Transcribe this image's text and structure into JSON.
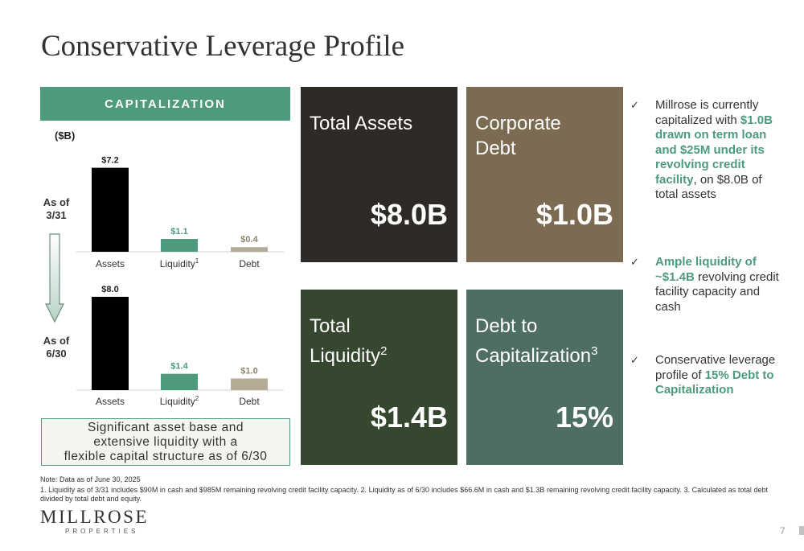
{
  "title": "Conservative Leverage Profile",
  "capitalization": {
    "header": "CAPITALIZATION",
    "unit": "($B)",
    "rows": [
      {
        "label_line1": "As of",
        "label_line2": "3/31"
      },
      {
        "label_line1": "As of",
        "label_line2": "6/30"
      }
    ],
    "summary_lines": [
      "Significant asset base and",
      "extensive liquidity with a",
      "flexible capital structure as of 6/30"
    ]
  },
  "chart_data": [
    {
      "type": "bar",
      "categories": [
        "Assets",
        "Liquidity",
        "Debt"
      ],
      "category_footnotes": [
        "",
        "1",
        ""
      ],
      "values": [
        7.2,
        1.1,
        0.4
      ],
      "value_labels": [
        "$7.2",
        "$1.1",
        "$0.4"
      ],
      "colors": [
        "#000000",
        "#4d9a7c",
        "#b5ab97"
      ],
      "label_colors": [
        "#222222",
        "#4d9a7c",
        "#8c836f"
      ],
      "ylim": [
        0,
        8.0
      ],
      "row_label": "As of 3/31",
      "ylabel": "($B)"
    },
    {
      "type": "bar",
      "categories": [
        "Assets",
        "Liquidity",
        "Debt"
      ],
      "category_footnotes": [
        "",
        "2",
        ""
      ],
      "values": [
        8.0,
        1.4,
        1.0
      ],
      "value_labels": [
        "$8.0",
        "$1.4",
        "$1.0"
      ],
      "colors": [
        "#000000",
        "#4d9a7c",
        "#b5ab97"
      ],
      "label_colors": [
        "#222222",
        "#4d9a7c",
        "#8c836f"
      ],
      "ylim": [
        0,
        8.0
      ],
      "row_label": "As of 6/30",
      "ylabel": "($B)"
    }
  ],
  "tiles": {
    "total_assets": {
      "label": "Total Assets",
      "value": "$8.0B",
      "color": "#2e2b26"
    },
    "corporate_debt": {
      "label_line1": "Corporate",
      "label_line2": "Debt",
      "value": "$1.0B",
      "color": "#7b6b52"
    },
    "total_liquidity": {
      "label_line1": "Total",
      "label_line2": "Liquidity",
      "sup": "2",
      "value": "$1.4B",
      "color": "#36472f"
    },
    "debt_to_cap": {
      "label_line1": "Debt to",
      "label_line2": "Capitalization",
      "sup": "3",
      "value": "15%",
      "color": "#4e6e63"
    }
  },
  "bullets": [
    {
      "check": "✓",
      "pre": "Millrose is currently capitalized with ",
      "highlight": "$1.0B drawn on term loan and $25M under its revolving credit facility",
      "post": ", on $8.0B of total assets"
    },
    {
      "check": "✓",
      "pre": "",
      "highlight": "Ample liquidity of ~$1.4B",
      "post": " revolving credit facility capacity and cash"
    },
    {
      "check": "✓",
      "pre": "Conservative leverage profile of ",
      "highlight": "15% Debt to Capitalization",
      "post": ""
    }
  ],
  "note": "Note: Data as of June 30, 2025",
  "footnotes": " 1. Liquidity as of 3/31 includes $90M in cash and $985M remaining revolving credit facility capacity. 2.  Liquidity as of 6/30 includes $66.6M in cash and $1.3B remaining revolving credit facility capacity. 3. Calculated as total debt divided by total debt and equity.",
  "logo": {
    "word": "MILLROSE",
    "sub": "PROPERTIES"
  },
  "page_number": "7"
}
